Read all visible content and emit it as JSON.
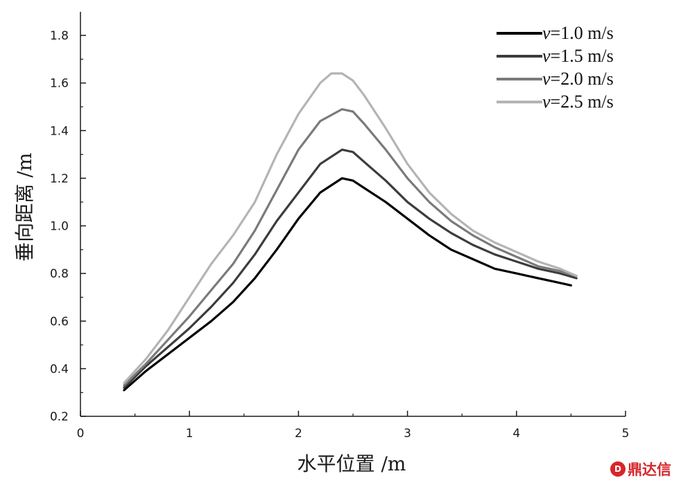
{
  "chart_data": {
    "type": "line",
    "xlabel": "水平位置 /m",
    "ylabel": "垂向距离 /m",
    "xlim": [
      0,
      5
    ],
    "ylim": [
      0.2,
      1.9
    ],
    "x_ticks": [
      0,
      1,
      2,
      3,
      4,
      5
    ],
    "y_ticks": [
      0.2,
      0.4,
      0.6,
      0.8,
      1.0,
      1.2,
      1.4,
      1.6,
      1.8
    ],
    "y_tick_labels": [
      "0.2",
      "0.4",
      "0.6",
      "0.8",
      "1.0",
      "1.2",
      "1.4",
      "1.6",
      "1.8"
    ],
    "grid": false,
    "legend_position": "top-right",
    "series": [
      {
        "name": "=1.0 m/s",
        "var": "v",
        "color": "#000000",
        "x": [
          0.4,
          0.6,
          0.8,
          1.0,
          1.2,
          1.4,
          1.6,
          1.8,
          2.0,
          2.2,
          2.4,
          2.5,
          2.6,
          2.8,
          3.0,
          3.2,
          3.4,
          3.6,
          3.8,
          4.0,
          4.2,
          4.4,
          4.5
        ],
        "y": [
          0.31,
          0.39,
          0.46,
          0.53,
          0.6,
          0.68,
          0.78,
          0.9,
          1.03,
          1.14,
          1.2,
          1.19,
          1.16,
          1.1,
          1.03,
          0.96,
          0.9,
          0.86,
          0.82,
          0.8,
          0.78,
          0.76,
          0.75
        ]
      },
      {
        "name": "=1.5 m/s",
        "var": "v",
        "color": "#3c3c3c",
        "x": [
          0.4,
          0.6,
          0.8,
          1.0,
          1.2,
          1.4,
          1.6,
          1.8,
          2.0,
          2.2,
          2.4,
          2.5,
          2.6,
          2.8,
          3.0,
          3.2,
          3.4,
          3.6,
          3.8,
          4.0,
          4.2,
          4.4,
          4.55
        ],
        "y": [
          0.32,
          0.41,
          0.49,
          0.57,
          0.66,
          0.76,
          0.88,
          1.02,
          1.14,
          1.26,
          1.32,
          1.31,
          1.27,
          1.19,
          1.1,
          1.03,
          0.97,
          0.92,
          0.88,
          0.85,
          0.82,
          0.8,
          0.78
        ]
      },
      {
        "name": "=2.0 m/s",
        "var": "v",
        "color": "#7a7a7a",
        "x": [
          0.4,
          0.6,
          0.8,
          1.0,
          1.2,
          1.4,
          1.6,
          1.8,
          2.0,
          2.2,
          2.4,
          2.5,
          2.6,
          2.8,
          3.0,
          3.2,
          3.4,
          3.6,
          3.8,
          4.0,
          4.2,
          4.4,
          4.55
        ],
        "y": [
          0.33,
          0.42,
          0.52,
          0.62,
          0.73,
          0.84,
          0.98,
          1.15,
          1.32,
          1.44,
          1.49,
          1.48,
          1.43,
          1.32,
          1.2,
          1.1,
          1.02,
          0.96,
          0.91,
          0.87,
          0.83,
          0.81,
          0.79
        ]
      },
      {
        "name": "=2.5 m/s",
        "var": "v",
        "color": "#b4b4b4",
        "x": [
          0.4,
          0.6,
          0.8,
          1.0,
          1.2,
          1.4,
          1.6,
          1.8,
          2.0,
          2.2,
          2.3,
          2.4,
          2.5,
          2.6,
          2.8,
          3.0,
          3.2,
          3.4,
          3.6,
          3.8,
          4.0,
          4.2,
          4.4,
          4.55
        ],
        "y": [
          0.34,
          0.44,
          0.56,
          0.7,
          0.84,
          0.96,
          1.1,
          1.3,
          1.47,
          1.6,
          1.64,
          1.64,
          1.61,
          1.55,
          1.41,
          1.26,
          1.14,
          1.05,
          0.98,
          0.93,
          0.89,
          0.85,
          0.82,
          0.79
        ]
      }
    ]
  },
  "watermark": {
    "badge": "D",
    "text": "鼎达信"
  }
}
